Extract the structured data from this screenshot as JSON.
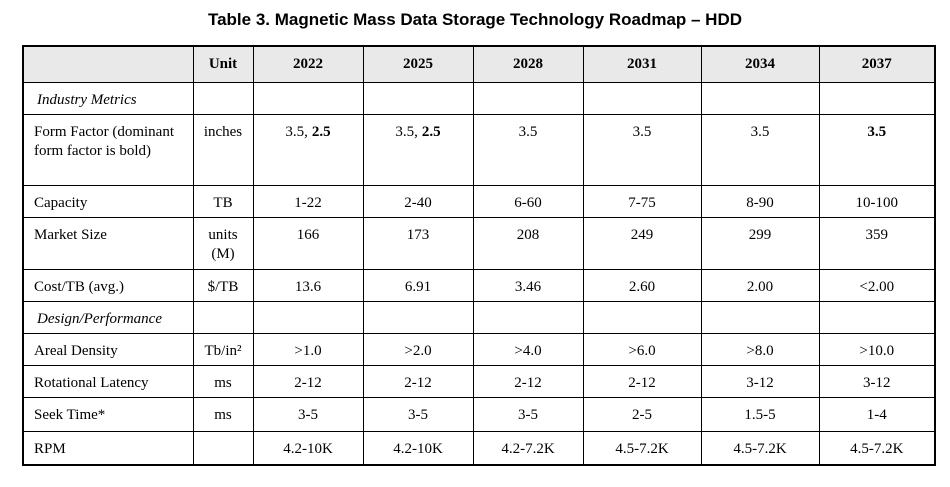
{
  "title": "Table 3. Magnetic Mass Data Storage Technology Roadmap – HDD",
  "table": {
    "header": {
      "unit": "Unit",
      "years": [
        "2022",
        "2025",
        "2028",
        "2031",
        "2034",
        "2037"
      ]
    },
    "rows": [
      {
        "section": "Industry Metrics"
      },
      {
        "label": "Form Factor (dominant form factor is bold)",
        "unit": "inches",
        "values": [
          {
            "text": "3.5,",
            "bold": "2.5"
          },
          {
            "text": "3.5,",
            "bold": "2.5"
          },
          "3.5",
          "3.5",
          "3.5",
          {
            "bold": "3.5"
          }
        ]
      },
      {
        "label": "Capacity",
        "unit": "TB",
        "values": [
          "1-22",
          "2-40",
          "6-60",
          "7-75",
          "8-90",
          "10-100"
        ]
      },
      {
        "label": "Market Size",
        "unit": "units (M)",
        "values": [
          "166",
          "173",
          "208",
          "249",
          "299",
          "359"
        ]
      },
      {
        "label": "Cost/TB (avg.)",
        "unit": "$/TB",
        "values": [
          "13.6",
          "6.91",
          "3.46",
          "2.60",
          "2.00",
          "<2.00"
        ]
      },
      {
        "section": "Design/Performance"
      },
      {
        "label": "Areal Density",
        "unit": "Tb/in²",
        "values": [
          ">1.0",
          ">2.0",
          ">4.0",
          ">6.0",
          ">8.0",
          ">10.0"
        ]
      },
      {
        "label": "Rotational Latency",
        "unit": "ms",
        "values": [
          "2-12",
          "2-12",
          "2-12",
          "2-12",
          "3-12",
          "3-12"
        ]
      },
      {
        "label": "Seek Time*",
        "unit": "ms",
        "values": [
          "3-5",
          "3-5",
          "3-5",
          "2-5",
          "1.5-5",
          "1-4"
        ]
      },
      {
        "label": "RPM",
        "values": [
          "4.2-10K",
          "4.2-10K",
          "4.2-7.2K",
          "4.5-7.2K",
          "4.5-7.2K",
          "4.5-7.2K"
        ]
      }
    ]
  }
}
